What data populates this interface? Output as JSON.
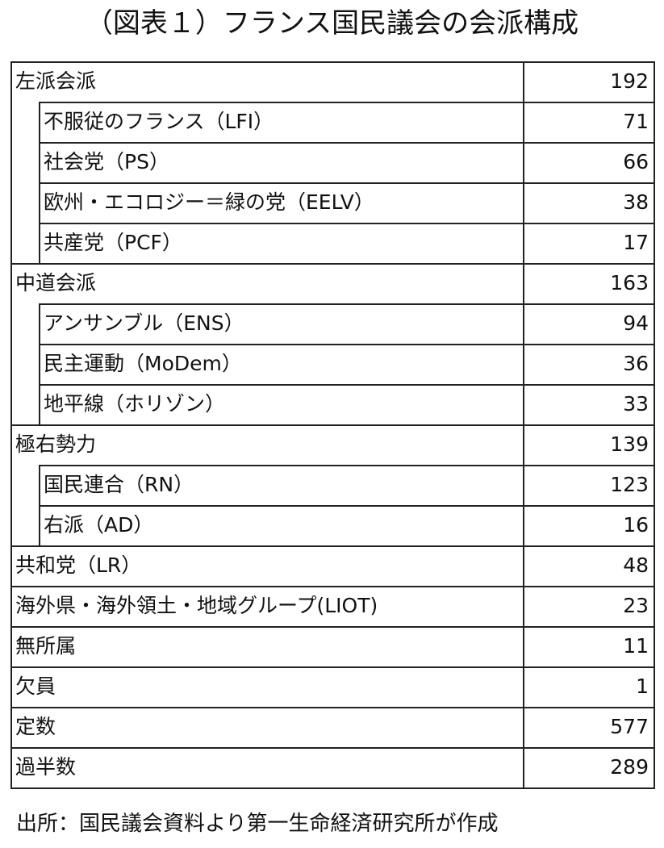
{
  "title": "（図表１）フランス国民議会の会派構成",
  "table": {
    "rows": [
      {
        "label": "左派会派",
        "value": "192",
        "children": [
          {
            "label": "不服従のフランス（LFI）",
            "value": "71"
          },
          {
            "label": "社会党（PS）",
            "value": "66"
          },
          {
            "label": "欧州・エコロジー＝緑の党（EELV）",
            "value": "38"
          },
          {
            "label": "共産党（PCF）",
            "value": "17"
          }
        ]
      },
      {
        "label": "中道会派",
        "value": "163",
        "children": [
          {
            "label": "アンサンブル（ENS）",
            "value": "94"
          },
          {
            "label": "民主運動（MoDem）",
            "value": "36"
          },
          {
            "label": "地平線（ホリゾン）",
            "value": "33"
          }
        ]
      },
      {
        "label": "極右勢力",
        "value": "139",
        "children": [
          {
            "label": "国民連合（RN）",
            "value": "123"
          },
          {
            "label": "右派（AD）",
            "value": "16"
          }
        ]
      },
      {
        "label": "共和党（LR）",
        "value": "48"
      },
      {
        "label": "海外県・海外領土・地域グループ(LIOT)",
        "value": "23"
      },
      {
        "label": "無所属",
        "value": "11"
      },
      {
        "label": "欠員",
        "value": "1"
      },
      {
        "label": "定数",
        "value": "577"
      },
      {
        "label": "過半数",
        "value": "289"
      }
    ]
  },
  "source": "出所：国民議会資料より第一生命経済研究所が作成"
}
